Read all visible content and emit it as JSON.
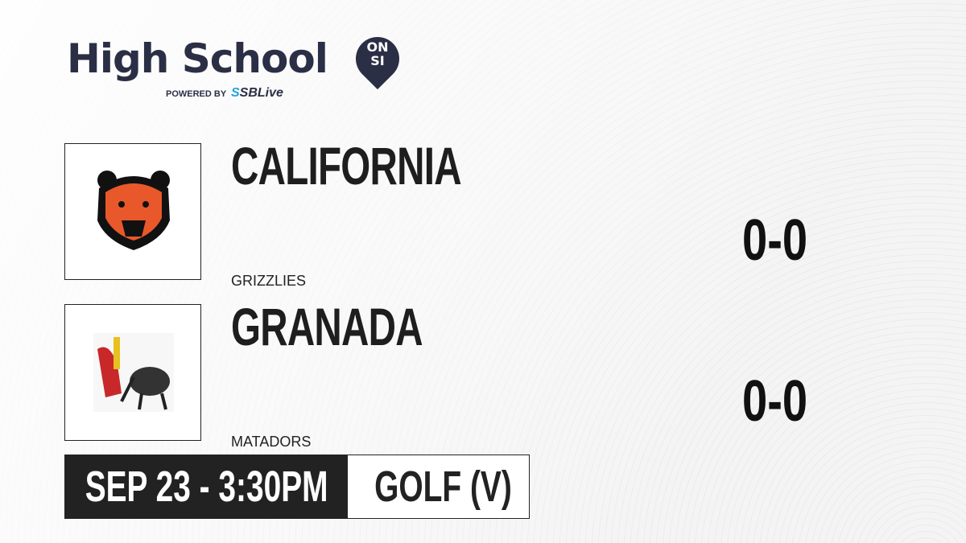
{
  "brand": {
    "title": "High School",
    "badge_top": "ON",
    "badge_bottom": "SI",
    "powered_by": "POWERED BY",
    "partner_prefix": "S",
    "partner": "SBLive"
  },
  "teams": [
    {
      "name": "CALIFORNIA",
      "mascot": "GRIZZLIES",
      "record": "0-0",
      "logo_icon": "grizzly-bear-logo"
    },
    {
      "name": "GRANADA",
      "mascot": "MATADORS",
      "record": "0-0",
      "logo_icon": "matador-bull-logo"
    }
  ],
  "event": {
    "datetime": "SEP 23 - 3:30PM",
    "sport": "GOLF (V)"
  },
  "colors": {
    "brand": "#2b2f45",
    "accent": "#1fa3e0",
    "bar": "#222222"
  }
}
